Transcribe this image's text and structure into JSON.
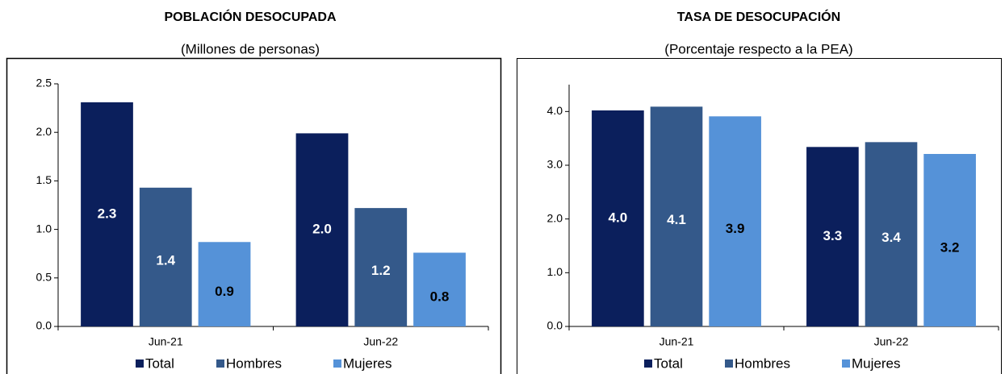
{
  "chart_data": [
    {
      "type": "bar",
      "title": "POBLACIÓN DESOCUPADA",
      "subtitle": "(Millones de personas)",
      "categories": [
        "Jun-21",
        "Jun-22"
      ],
      "series": [
        {
          "name": "Total",
          "color": "#0b1f5c",
          "label_color": "#ffffff",
          "values": [
            2.31,
            1.99
          ],
          "value_labels": [
            "2.3",
            "2.0"
          ]
        },
        {
          "name": "Hombres",
          "color": "#34598a",
          "label_color": "#ffffff",
          "values": [
            1.43,
            1.22
          ],
          "value_labels": [
            "1.4",
            "1.2"
          ]
        },
        {
          "name": "Mujeres",
          "color": "#5592d8",
          "label_color": "#000000",
          "values": [
            0.87,
            0.76
          ],
          "value_labels": [
            "0.9",
            "0.8"
          ]
        }
      ],
      "ylim": [
        0,
        2.5
      ],
      "yticks": [
        {
          "value": 0,
          "label": "0.0"
        },
        0.5,
        {
          "value": 1,
          "label": "1.0"
        },
        1.5,
        {
          "value": 2,
          "label": "2.0"
        },
        2.5
      ]
    },
    {
      "type": "bar",
      "title": "TASA DE DESOCUPACIÓN",
      "subtitle": "(Porcentaje respecto a la PEA)",
      "categories": [
        "Jun-21",
        "Jun-22"
      ],
      "series": [
        {
          "name": "Total",
          "color": "#0b1f5c",
          "label_color": "#ffffff",
          "values": [
            4.02,
            3.34
          ],
          "value_labels": [
            "4.0",
            "3.3"
          ]
        },
        {
          "name": "Hombres",
          "color": "#34598a",
          "label_color": "#ffffff",
          "values": [
            4.09,
            3.43
          ],
          "value_labels": [
            "4.1",
            "3.4"
          ]
        },
        {
          "name": "Mujeres",
          "color": "#5592d8",
          "label_color": "#000000",
          "values": [
            3.91,
            3.21
          ],
          "value_labels": [
            "3.9",
            "3.2"
          ]
        }
      ],
      "ylim": [
        0,
        4.5
      ],
      "yticks": [
        {
          "value": 0,
          "label": "0.0"
        },
        {
          "value": 1,
          "label": "1.0"
        },
        {
          "value": 2,
          "label": "2.0"
        },
        {
          "value": 3,
          "label": "3.0"
        },
        {
          "value": 4,
          "label": "4.0"
        }
      ]
    }
  ]
}
